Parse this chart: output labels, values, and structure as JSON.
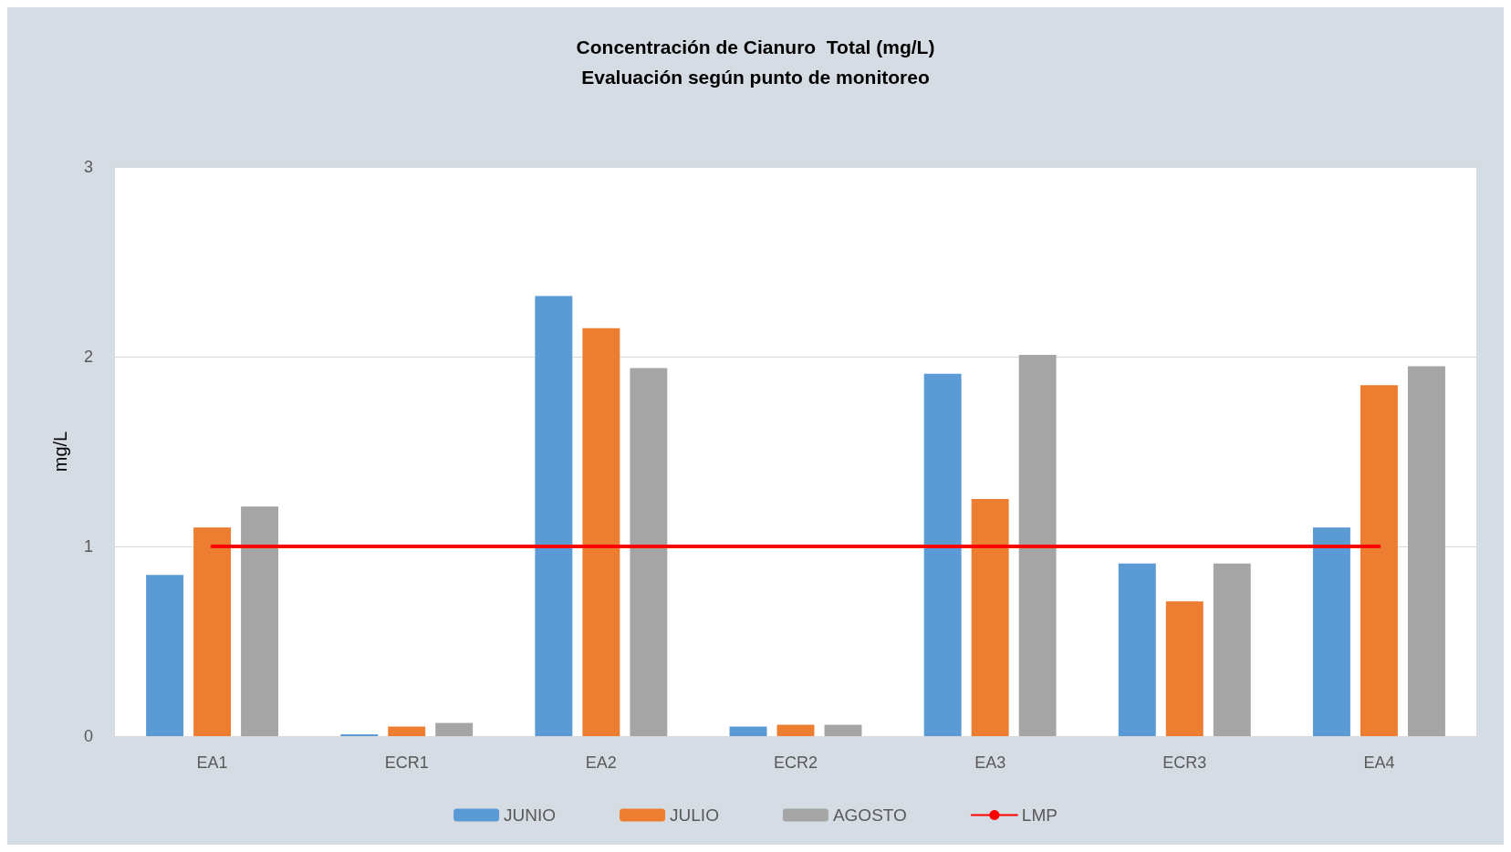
{
  "chart_data": {
    "type": "bar",
    "title": "Concentración de Cianuro  Total (mg/L)",
    "subtitle": "Evaluación según punto de monitoreo",
    "ylabel": "mg/L",
    "categories": [
      "EA1",
      "ECR1",
      "EA2",
      "ECR2",
      "EA3",
      "ECR3",
      "EA4"
    ],
    "series": [
      {
        "name": "JUNIO",
        "color": "#5b9bd5",
        "values": [
          0.85,
          0.01,
          2.32,
          0.05,
          1.91,
          0.91,
          1.1
        ]
      },
      {
        "name": "JULIO",
        "color": "#ed7d31",
        "values": [
          1.1,
          0.05,
          2.15,
          0.06,
          1.25,
          0.71,
          1.85
        ]
      },
      {
        "name": "AGOSTO",
        "color": "#a5a5a5",
        "values": [
          1.21,
          0.07,
          1.94,
          0.06,
          2.01,
          0.91,
          1.95
        ]
      },
      {
        "name": "LMP",
        "type": "line",
        "color": "#ff0000",
        "marker": "none",
        "values": [
          1,
          1,
          1,
          1,
          1,
          1,
          1
        ]
      }
    ],
    "ylim": [
      0,
      3
    ],
    "yticks": [
      0,
      1,
      2,
      3
    ],
    "grid": "y",
    "legend": "bottom"
  }
}
